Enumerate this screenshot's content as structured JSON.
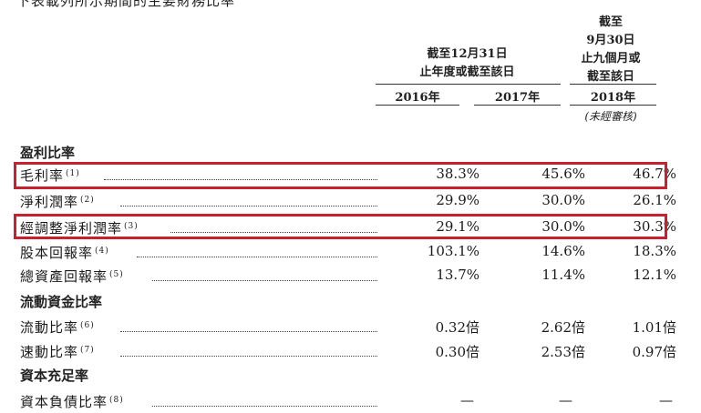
{
  "page_title_cut": "下表載列所示期間的主要財務比率",
  "header": {
    "group_a": [
      "截至12月31日",
      "止年度或截至該日"
    ],
    "group_b": [
      "截至",
      "9月30日",
      "止九個月或",
      "截至該日"
    ],
    "years": [
      "2016年",
      "2017年",
      "2018年"
    ],
    "unaudited": "(未經審核)"
  },
  "sections": [
    {
      "title": "盈利比率",
      "rows": [
        {
          "label": "毛利率",
          "note": "(1)",
          "values": [
            "38.3%",
            "45.6%",
            "46.7%"
          ],
          "highlighted": true
        },
        {
          "label": "淨利潤率",
          "note": "(2)",
          "values": [
            "29.9%",
            "30.0%",
            "26.1%"
          ],
          "highlighted": false
        },
        {
          "label": "經調整淨利潤率",
          "note": "(3)",
          "values": [
            "29.1%",
            "30.0%",
            "30.3%"
          ],
          "highlighted": true
        },
        {
          "label": "股本回報率",
          "note": "(4)",
          "values": [
            "103.1%",
            "14.6%",
            "18.3%"
          ],
          "highlighted": false
        },
        {
          "label": "總資產回報率",
          "note": "(5)",
          "values": [
            "13.7%",
            "11.4%",
            "12.1%"
          ],
          "highlighted": false
        }
      ]
    },
    {
      "title": "流動資金比率",
      "rows": [
        {
          "label": "流動比率",
          "note": "(6)",
          "values": [
            "0.32倍",
            "2.62倍",
            "1.01倍"
          ],
          "highlighted": false
        },
        {
          "label": "速動比率",
          "note": "(7)",
          "values": [
            "0.30倍",
            "2.53倍",
            "0.97倍"
          ],
          "highlighted": false
        }
      ]
    },
    {
      "title": "資本充足率",
      "rows": [
        {
          "label": "資本負債比率",
          "note": "(8)",
          "values": [
            "—",
            "—",
            "—"
          ],
          "highlighted": false
        }
      ]
    }
  ],
  "colors": {
    "highlight_border": "#c8202f"
  }
}
